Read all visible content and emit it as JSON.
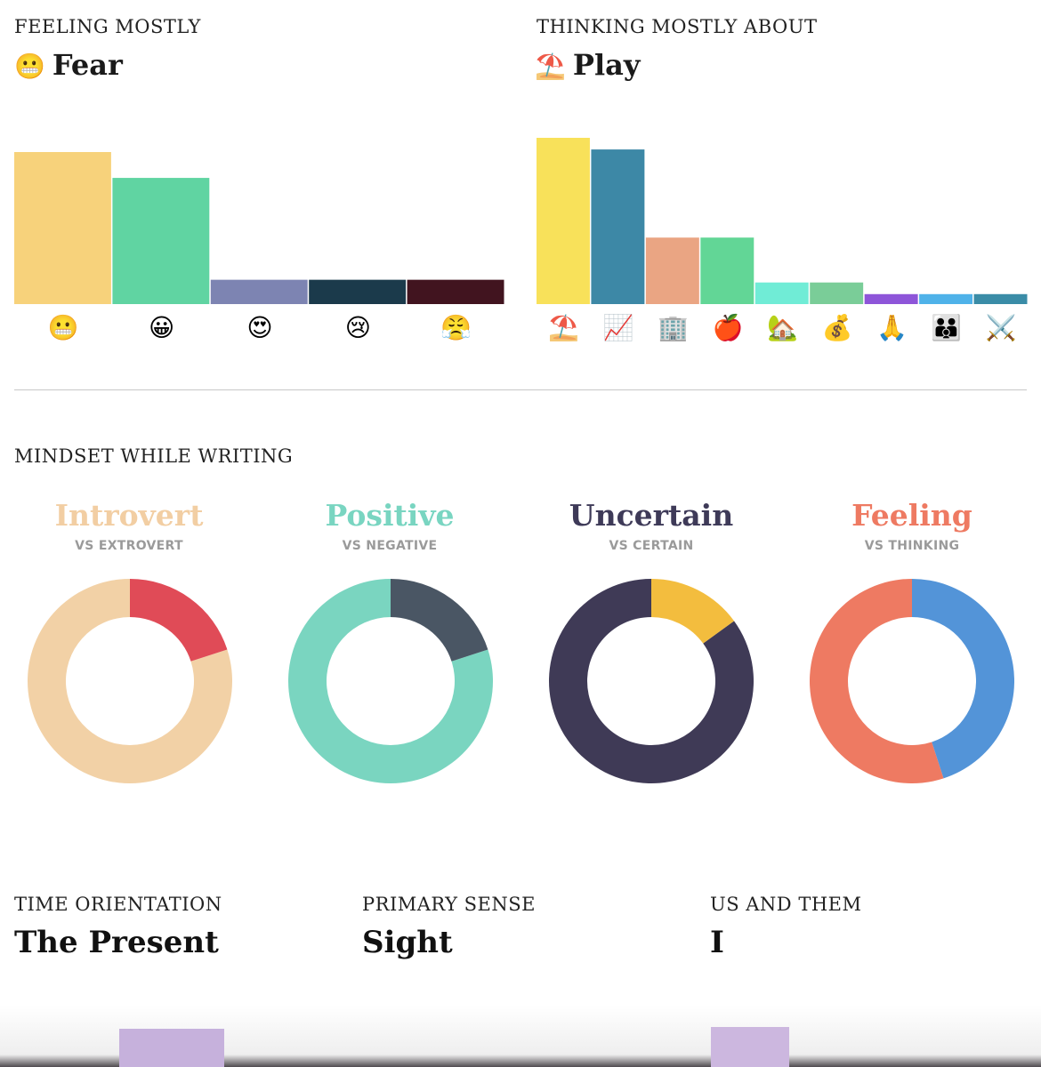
{
  "feeling": {
    "label": "FEELING MOSTLY",
    "value_emoji": "😬",
    "value": "Fear"
  },
  "thinking": {
    "label": "THINKING MOSTLY ABOUT",
    "value_emoji": "⛱️",
    "value": "Play"
  },
  "mindset": {
    "label": "MINDSET WHILE WRITING"
  },
  "stats": {
    "time": {
      "label": "TIME ORIENTATION",
      "value": "The Present"
    },
    "sense": {
      "label": "PRIMARY SENSE",
      "value": "Sight"
    },
    "us_them": {
      "label": "US AND THEM",
      "value": "I"
    }
  },
  "chart_data": [
    {
      "type": "bar",
      "id": "feeling",
      "categories": [
        "😬",
        "😀",
        "😍",
        "😢",
        "😤"
      ],
      "values": [
        100,
        83,
        16,
        16,
        16
      ],
      "colors": [
        "#f7d27b",
        "#60d4a2",
        "#7d84b2",
        "#1b3a4b",
        "#41141f"
      ],
      "ylim": [
        0,
        100
      ]
    },
    {
      "type": "bar",
      "id": "thinking",
      "categories": [
        "⛱️",
        "📈",
        "🏢",
        "🍎",
        "🏡",
        "💰",
        "🙏",
        "👪",
        "⚔️"
      ],
      "values": [
        100,
        93,
        40,
        40,
        13,
        13,
        6,
        6,
        6
      ],
      "colors": [
        "#f8e15a",
        "#3d88a6",
        "#eaa583",
        "#62d696",
        "#70ecd6",
        "#7acd98",
        "#8e55d9",
        "#4fb2e9",
        "#3a8ca7"
      ],
      "ylim": [
        0,
        100
      ]
    },
    {
      "type": "pie",
      "id": "mindset-introvert",
      "title": "Introvert",
      "subtitle": "VS EXTROVERT",
      "title_color": "#f2cea3",
      "slices": [
        {
          "value": 0.8,
          "color": "#f2d1a6"
        },
        {
          "value": 0.2,
          "color": "#e04b57"
        }
      ]
    },
    {
      "type": "pie",
      "id": "mindset-positive",
      "title": "Positive",
      "subtitle": "VS NEGATIVE",
      "title_color": "#79d5c1",
      "slices": [
        {
          "value": 0.8,
          "color": "#7ad5c0"
        },
        {
          "value": 0.2,
          "color": "#4a5664"
        }
      ]
    },
    {
      "type": "pie",
      "id": "mindset-uncertain",
      "title": "Uncertain",
      "subtitle": "VS CERTAIN",
      "title_color": "#3e3a58",
      "slices": [
        {
          "value": 0.85,
          "color": "#3f3a56"
        },
        {
          "value": 0.15,
          "color": "#f3bd3e"
        }
      ]
    },
    {
      "type": "pie",
      "id": "mindset-feeling",
      "title": "Feeling",
      "subtitle": "VS THINKING",
      "title_color": "#ee7a62",
      "slices": [
        {
          "value": 0.55,
          "color": "#ee7a62"
        },
        {
          "value": 0.45,
          "color": "#5394d8"
        }
      ]
    }
  ],
  "palette": {
    "peek_purple": "#c6b1dc",
    "divider": "#c8c8c8"
  }
}
